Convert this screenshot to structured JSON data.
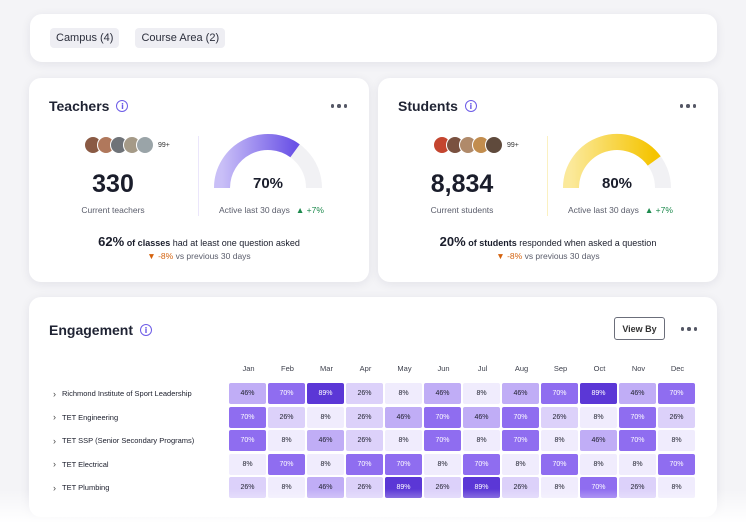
{
  "filters": [
    {
      "label": "Campus (4)"
    },
    {
      "label": "Course Area (2)"
    }
  ],
  "teachers": {
    "title": "Teachers",
    "avatar_more": "99+",
    "count": "330",
    "count_label": "Current teachers",
    "gauge_value": 0.7,
    "gauge_pct": "70%",
    "active_label": "Active last 30 days",
    "active_delta": "▲ +7%",
    "summary_pct": "62%",
    "summary_bold": "of classes",
    "summary_rest": "had at least one question asked",
    "delta": "▼ -8%",
    "delta_label": "vs previous 30 days",
    "accent": "#6d5ce7"
  },
  "students": {
    "title": "Students",
    "avatar_more": "99+",
    "count": "8,834",
    "count_label": "Current students",
    "gauge_value": 0.8,
    "gauge_pct": "80%",
    "active_label": "Active last 30 days",
    "active_delta": "▲ +7%",
    "summary_pct": "20%",
    "summary_bold": "of students",
    "summary_rest": "responded when asked a question",
    "delta": "▼ -8%",
    "delta_label": "vs previous 30 days",
    "accent": "#f5c400"
  },
  "engagement": {
    "title": "Engagement",
    "view_by": "View By",
    "months": [
      "Jan",
      "Feb",
      "Mar",
      "Apr",
      "May",
      "Jun",
      "Jul",
      "Aug",
      "Sep",
      "Oct",
      "Nov",
      "Dec"
    ],
    "rows": [
      {
        "label": "Richmond Institute of Sport Leadership",
        "values": [
          "46%",
          "70%",
          "89%",
          "26%",
          "8%",
          "46%",
          "8%",
          "46%",
          "70%",
          "89%",
          "46%",
          "70%"
        ]
      },
      {
        "label": "TET Engineering",
        "values": [
          "70%",
          "26%",
          "8%",
          "26%",
          "46%",
          "70%",
          "46%",
          "70%",
          "26%",
          "8%",
          "70%",
          "26%"
        ]
      },
      {
        "label": "TET SSP (Senior Secondary Programs)",
        "values": [
          "70%",
          "8%",
          "46%",
          "26%",
          "8%",
          "70%",
          "8%",
          "70%",
          "8%",
          "46%",
          "70%",
          "8%"
        ]
      },
      {
        "label": "TET Electrical",
        "values": [
          "8%",
          "70%",
          "8%",
          "70%",
          "70%",
          "8%",
          "70%",
          "8%",
          "70%",
          "8%",
          "8%",
          "70%"
        ]
      },
      {
        "label": "TET Plumbing",
        "values": [
          "26%",
          "8%",
          "46%",
          "26%",
          "89%",
          "26%",
          "89%",
          "26%",
          "8%",
          "70%",
          "26%",
          "8%"
        ]
      }
    ]
  }
}
